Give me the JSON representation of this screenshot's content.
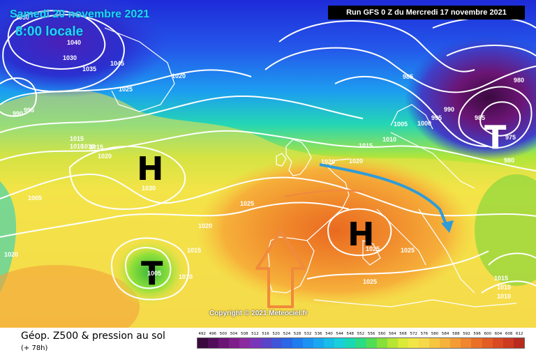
{
  "header": {
    "date": "Samedi 20 novembre 2021",
    "time": "8:00 locale",
    "run": "Run GFS 0 Z du Mercredi 17 novembre 2021"
  },
  "map": {
    "copyright": "Copyright © 2021 Meteociel.fr",
    "pressure_systems": [
      {
        "symbol": "H",
        "label": "1030"
      },
      {
        "symbol": "T",
        "label": "1005"
      },
      {
        "symbol": "H",
        "label": "1025"
      },
      {
        "symbol": "T",
        "label": "975"
      }
    ],
    "isobar_labels": [
      "1030",
      "1040",
      "1030",
      "1035",
      "1045",
      "1025",
      "1020",
      "995",
      "990",
      "1015",
      "1010",
      "1010",
      "1015",
      "1020",
      "1005",
      "1020",
      "1025",
      "1020",
      "1015",
      "1010",
      "985",
      "980",
      "990",
      "995",
      "1000",
      "1005",
      "1015",
      "1010",
      "985",
      "980",
      "1020",
      "1025",
      "1025",
      "1015",
      "1010",
      "1010",
      "1020"
    ],
    "colors": {
      "high_marker": "#000000",
      "low_marker": "#000000",
      "arrow_orange": "#f08a3c",
      "arrow_blue": "#2f9cd8",
      "isobar": "#ffffff"
    }
  },
  "footer": {
    "title": "Géop. Z500 & pression au sol",
    "forecast": "(+ 78h)"
  },
  "scale": {
    "labels": [
      "492",
      "496",
      "500",
      "504",
      "508",
      "512",
      "516",
      "520",
      "524",
      "528",
      "532",
      "536",
      "540",
      "544",
      "548",
      "552",
      "556",
      "560",
      "564",
      "568",
      "572",
      "576",
      "580",
      "584",
      "588",
      "592",
      "596",
      "600",
      "604",
      "608",
      "612"
    ],
    "colors": [
      "#3a0a3f",
      "#520e5a",
      "#6b1574",
      "#7f1d8c",
      "#8c2aa0",
      "#7a36b8",
      "#5b44c8",
      "#3f55d8",
      "#2a66e6",
      "#1f7cee",
      "#1c92f2",
      "#19a8f0",
      "#18bde8",
      "#19d0da",
      "#1ad8b6",
      "#2cdc84",
      "#52de54",
      "#86e03a",
      "#b6e534",
      "#dbea36",
      "#f2e646",
      "#f6d84a",
      "#f6c640",
      "#f5b23a",
      "#f39c34",
      "#f0862e",
      "#ea7028",
      "#e25c24",
      "#d94a22",
      "#cc3a20",
      "#b82c1e"
    ]
  }
}
